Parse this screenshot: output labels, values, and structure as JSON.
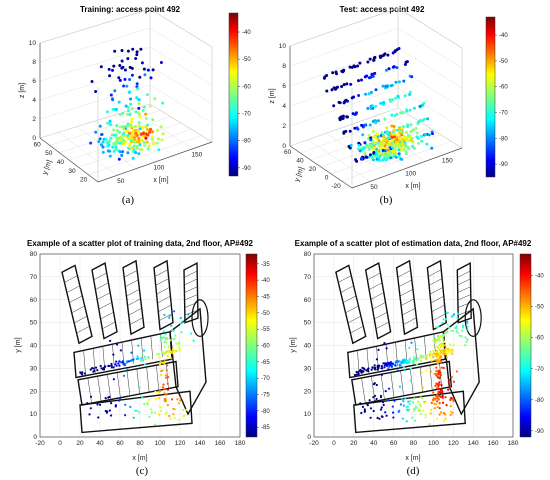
{
  "chart_data": [
    {
      "type": "scatter",
      "panel": "(a)",
      "title": "Training:  access point 492",
      "xlabel": "x [m]",
      "ylabel": "y [m]",
      "zlabel": "z [m]",
      "x_ticks": [
        "50",
        "100",
        "150"
      ],
      "y_ticks": [
        "20",
        "30",
        "40",
        "50",
        "60"
      ],
      "z_ticks": [
        "0",
        "2",
        "4",
        "6",
        "8",
        "10"
      ],
      "colorbar": {
        "ticks": [
          "-40",
          "-50",
          "-60",
          "-70",
          "-80",
          "-90"
        ],
        "range": [
          -93,
          -33
        ]
      },
      "colormap": "jet",
      "grid": true
    },
    {
      "type": "scatter",
      "panel": "(b)",
      "title": "Test:  access point 492",
      "xlabel": "x [m]",
      "ylabel": "y [m]",
      "zlabel": "z [m]",
      "x_ticks": [
        "50",
        "100",
        "150"
      ],
      "y_ticks": [
        "-20",
        "0",
        "20",
        "40",
        "60"
      ],
      "z_ticks": [
        "0",
        "2",
        "4",
        "6",
        "8",
        "10"
      ],
      "colorbar": {
        "ticks": [
          "-40",
          "-50",
          "-60",
          "-70",
          "-80",
          "-90"
        ],
        "range": [
          -95,
          -33
        ]
      },
      "colormap": "jet",
      "grid": true
    },
    {
      "type": "scatter",
      "panel": "(c)",
      "title": "Example of a scatter plot of training data, 2nd floor, AP#492",
      "xlabel": "x [m]",
      "ylabel": "y [m]",
      "xlim": [
        -20,
        180
      ],
      "ylim": [
        0,
        80
      ],
      "x_ticks": [
        "-20",
        "0",
        "20",
        "40",
        "60",
        "80",
        "100",
        "120",
        "140",
        "160",
        "180"
      ],
      "y_ticks": [
        "0",
        "10",
        "20",
        "30",
        "40",
        "50",
        "60",
        "70",
        "80"
      ],
      "colorbar": {
        "ticks": [
          "-35",
          "-40",
          "-45",
          "-50",
          "-55",
          "-60",
          "-65",
          "-70",
          "-75",
          "-80",
          "-85"
        ],
        "range": [
          -88,
          -32
        ]
      },
      "colormap": "jet",
      "grid": true
    },
    {
      "type": "scatter",
      "panel": "(d)",
      "title": "Example of a scatter plot of estimation data, 2nd floor, AP#492",
      "xlabel": "x [m]",
      "ylabel": "y [m]",
      "xlim": [
        -20,
        180
      ],
      "ylim": [
        0,
        80
      ],
      "x_ticks": [
        "-20",
        "0",
        "20",
        "40",
        "60",
        "80",
        "100",
        "120",
        "140",
        "160",
        "180"
      ],
      "y_ticks": [
        "0",
        "10",
        "20",
        "30",
        "40",
        "50",
        "60",
        "70",
        "80"
      ],
      "colorbar": {
        "ticks": [
          "-40",
          "-50",
          "-60",
          "-70",
          "-80",
          "-90"
        ],
        "range": [
          -92,
          -33
        ]
      },
      "colormap": "jet",
      "grid": true
    }
  ]
}
